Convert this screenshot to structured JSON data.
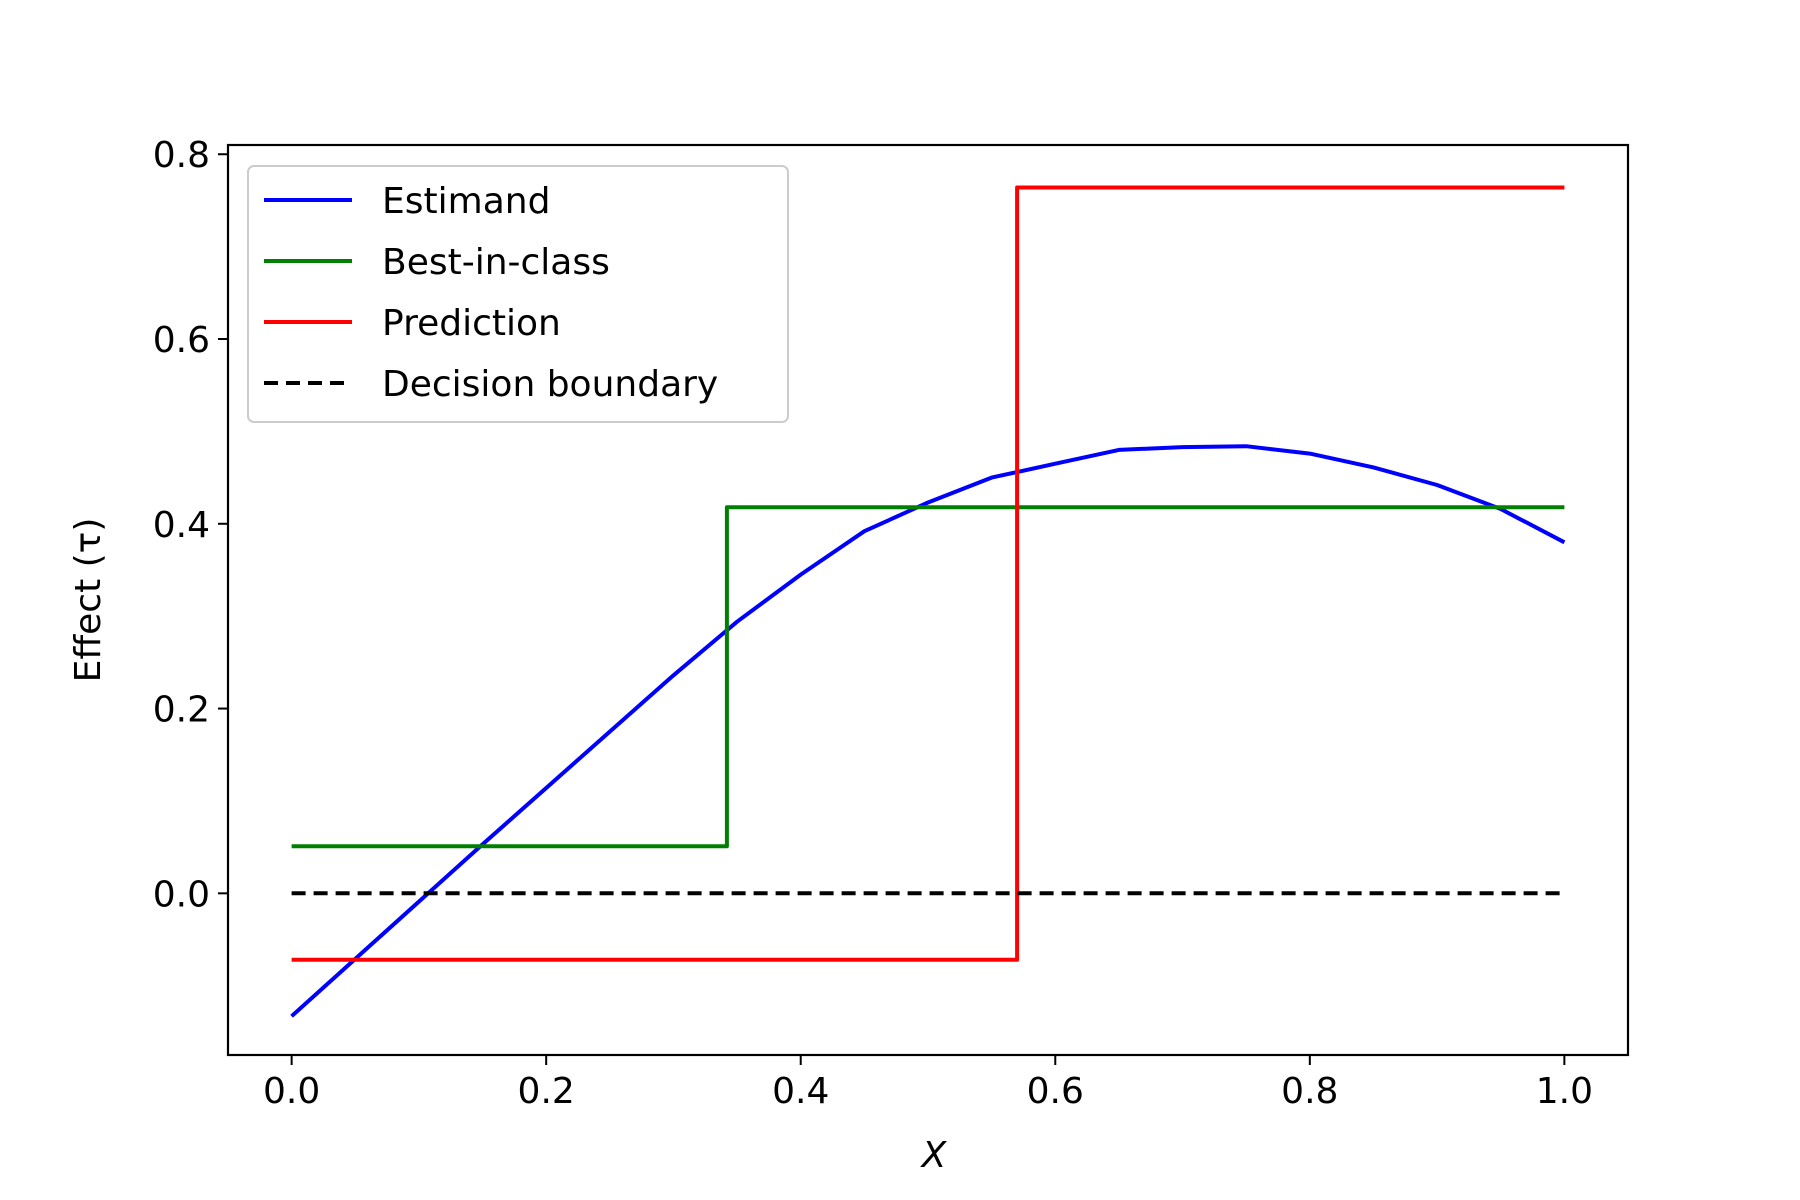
{
  "chart_data": {
    "type": "line",
    "title": "",
    "xlabel": "X",
    "ylabel": "Effect (τ)",
    "xlim": [
      -0.05,
      1.05
    ],
    "ylim": [
      -0.175,
      0.81
    ],
    "xticks": [
      0.0,
      0.2,
      0.4,
      0.6,
      0.8,
      1.0
    ],
    "xtick_labels": [
      "0.0",
      "0.2",
      "0.4",
      "0.6",
      "0.8",
      "1.0"
    ],
    "yticks": [
      0.0,
      0.2,
      0.4,
      0.6,
      0.8
    ],
    "ytick_labels": [
      "0.0",
      "0.2",
      "0.4",
      "0.6",
      "0.8"
    ],
    "grid": false,
    "legend_position": "upper-left",
    "series": [
      {
        "name": "Estimand",
        "color": "#0000ff",
        "style": "solid",
        "kind": "line",
        "x": [
          0.0,
          0.05,
          0.1,
          0.15,
          0.2,
          0.25,
          0.3,
          0.35,
          0.4,
          0.45,
          0.5,
          0.55,
          0.6,
          0.65,
          0.7,
          0.75,
          0.8,
          0.85,
          0.9,
          0.95,
          1.0
        ],
        "y": [
          -0.133,
          -0.071,
          -0.009,
          0.053,
          0.114,
          0.175,
          0.236,
          0.294,
          0.345,
          0.392,
          0.423,
          0.45,
          0.465,
          0.48,
          0.483,
          0.484,
          0.476,
          0.461,
          0.442,
          0.416,
          0.38
        ]
      },
      {
        "name": "Best-in-class",
        "color": "#008000",
        "style": "solid",
        "kind": "step",
        "x": [
          0.0,
          0.342,
          0.342,
          1.0
        ],
        "y": [
          0.051,
          0.051,
          0.418,
          0.418
        ]
      },
      {
        "name": "Prediction",
        "color": "#ff0000",
        "style": "solid",
        "kind": "step",
        "x": [
          0.0,
          0.57,
          0.57,
          1.0
        ],
        "y": [
          -0.072,
          -0.072,
          0.764,
          0.764
        ]
      },
      {
        "name": "Decision boundary",
        "color": "#000000",
        "style": "dashed",
        "kind": "line",
        "x": [
          0.0,
          1.0
        ],
        "y": [
          0.0,
          0.0
        ]
      }
    ]
  }
}
